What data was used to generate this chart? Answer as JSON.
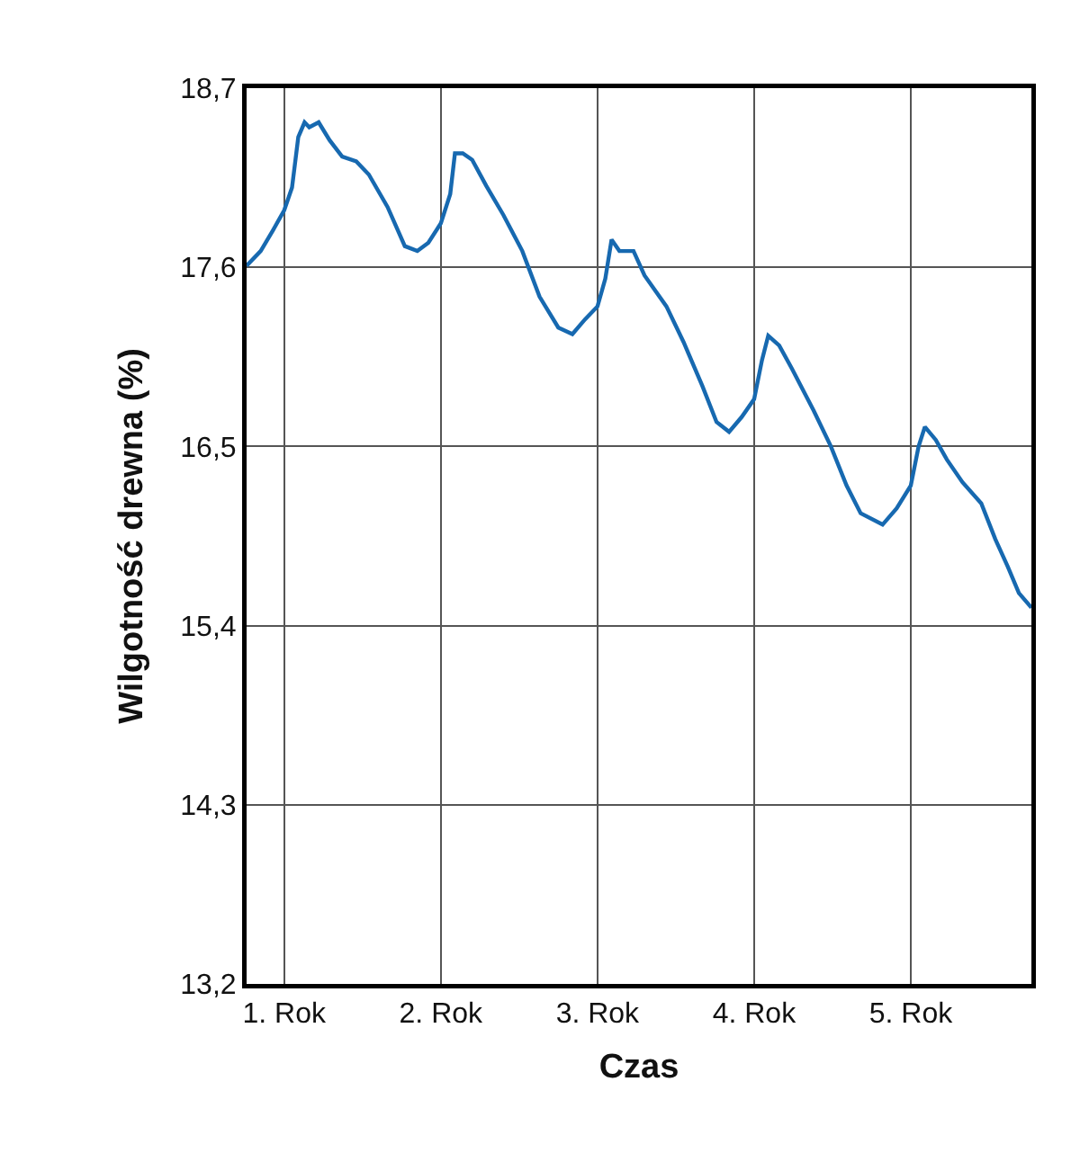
{
  "chart_data": {
    "type": "line",
    "xlabel": "Czas",
    "ylabel": "Wilgotność drewna (%)",
    "x": [
      0.76,
      0.85,
      0.93,
      1.0,
      1.05,
      1.09,
      1.13,
      1.16,
      1.22,
      1.29,
      1.37,
      1.46,
      1.54,
      1.66,
      1.77,
      1.85,
      1.92,
      2.0,
      2.06,
      2.09,
      2.14,
      2.2,
      2.29,
      2.4,
      2.52,
      2.63,
      2.75,
      2.84,
      2.92,
      3.0,
      3.05,
      3.09,
      3.14,
      3.23,
      3.3,
      3.44,
      3.55,
      3.67,
      3.76,
      3.84,
      3.92,
      4.0,
      4.05,
      4.09,
      4.16,
      4.24,
      4.38,
      4.49,
      4.59,
      4.68,
      4.82,
      4.91,
      5.0,
      5.05,
      5.09,
      5.16,
      5.23,
      5.33,
      5.45,
      5.54,
      5.62,
      5.69,
      5.77
    ],
    "series": [
      {
        "color": "#1769b0",
        "values": [
          17.61,
          17.7,
          17.83,
          17.95,
          18.09,
          18.4,
          18.49,
          18.46,
          18.49,
          18.38,
          18.28,
          18.25,
          18.17,
          17.97,
          17.73,
          17.7,
          17.75,
          17.87,
          18.05,
          18.3,
          18.3,
          18.26,
          18.1,
          17.92,
          17.7,
          17.42,
          17.23,
          17.19,
          17.28,
          17.36,
          17.53,
          17.77,
          17.7,
          17.7,
          17.55,
          17.36,
          17.14,
          16.87,
          16.65,
          16.59,
          16.68,
          16.79,
          17.03,
          17.18,
          17.12,
          16.98,
          16.72,
          16.5,
          16.26,
          16.09,
          16.02,
          16.12,
          16.26,
          16.5,
          16.62,
          16.54,
          16.42,
          16.28,
          16.15,
          15.93,
          15.76,
          15.6,
          15.51
        ]
      }
    ],
    "xlim": [
      0.76,
      5.77
    ],
    "xticks": [
      {
        "value": 1,
        "label": "1. Rok"
      },
      {
        "value": 2,
        "label": "2. Rok"
      },
      {
        "value": 3,
        "label": "3. Rok"
      },
      {
        "value": 4,
        "label": "4. Rok"
      },
      {
        "value": 5,
        "label": "5. Rok"
      }
    ],
    "ylim": [
      13.2,
      18.7
    ],
    "yticks": [
      {
        "value": 13.2,
        "label": "13,2"
      },
      {
        "value": 14.3,
        "label": "14,3"
      },
      {
        "value": 15.4,
        "label": "15,4"
      },
      {
        "value": 16.5,
        "label": "16,5"
      },
      {
        "value": 17.6,
        "label": "17,6"
      },
      {
        "value": 18.7,
        "label": "18,7"
      }
    ],
    "grid": true,
    "marker": "none",
    "line_style": "solid",
    "legend": false
  }
}
